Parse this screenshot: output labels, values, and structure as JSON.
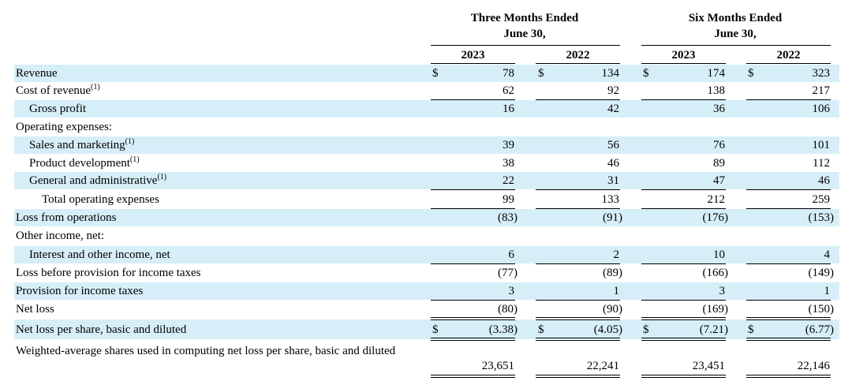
{
  "header": {
    "group1_line1": "Three Months Ended",
    "group1_line2": "June 30,",
    "group2_line1": "Six Months Ended",
    "group2_line2": "June 30,",
    "years": [
      "2023",
      "2022",
      "2023",
      "2022"
    ]
  },
  "currency_symbol": "$",
  "footnote_marker": "(1)",
  "rows": [
    {
      "label": "Revenue",
      "values": [
        "78",
        "134",
        "174",
        "323"
      ]
    },
    {
      "label": "Cost of revenue",
      "values": [
        "62",
        "92",
        "138",
        "217"
      ]
    },
    {
      "label": "Gross profit",
      "values": [
        "16",
        "42",
        "36",
        "106"
      ]
    },
    {
      "label": "Operating expenses:",
      "values": []
    },
    {
      "label": "Sales and marketing",
      "values": [
        "39",
        "56",
        "76",
        "101"
      ]
    },
    {
      "label": "Product development",
      "values": [
        "38",
        "46",
        "89",
        "112"
      ]
    },
    {
      "label": "General and administrative",
      "values": [
        "22",
        "31",
        "47",
        "46"
      ]
    },
    {
      "label": "Total operating expenses",
      "values": [
        "99",
        "133",
        "212",
        "259"
      ]
    },
    {
      "label": "Loss from operations",
      "values": [
        "(83)",
        "(91)",
        "(176)",
        "(153)"
      ]
    },
    {
      "label": "Other income, net:",
      "values": []
    },
    {
      "label": "Interest and other income, net",
      "values": [
        "6",
        "2",
        "10",
        "4"
      ]
    },
    {
      "label": "Loss before provision for income taxes",
      "values": [
        "(77)",
        "(89)",
        "(166)",
        "(149)"
      ]
    },
    {
      "label": "Provision for income taxes",
      "values": [
        "3",
        "1",
        "3",
        "1"
      ]
    },
    {
      "label": "Net loss",
      "values": [
        "(80)",
        "(90)",
        "(169)",
        "(150)"
      ]
    },
    {
      "label": "Net loss per share, basic and diluted",
      "values": [
        "(3.38)",
        "(4.05)",
        "(7.21)",
        "(6.77)"
      ]
    },
    {
      "label": "Weighted-average shares used in computing net loss per share, basic and diluted",
      "values": [
        "23,651",
        "22,241",
        "23,451",
        "22,146"
      ]
    }
  ]
}
